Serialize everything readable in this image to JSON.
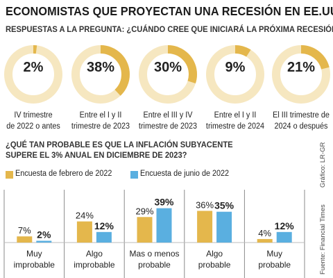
{
  "title": "ECONOMISTAS QUE PROYECTAN UNA RECESIÓN EN EE.UU.",
  "subtitle": "RESPUESTAS A LA PREGUNTA: ¿CUÁNDO CREE QUE INICIARÁ LA PRÓXIMA RECESIÓN?",
  "question2_line1": "¿QUÉ TAN PROBABLE ES QUE LA INFLACIÓN SUBYACENTE",
  "question2_line2": "SUPERE EL 3% ANUAL EN DICIEMBRE DE 2023?",
  "credit_grafico": "Gráfico: LR-GR",
  "credit_fuente": "Fuente: Financial Times",
  "colors": {
    "gold": "#e4b74c",
    "light_gold": "#f6e7c0",
    "blue": "#5aafe0",
    "grid": "#8a8a8a"
  },
  "chart_data": [
    {
      "type": "pie",
      "style": "donut",
      "title": "RESPUESTAS A LA PREGUNTA: ¿CUÁNDO CREE QUE INICIARÁ LA PRÓXIMA RECESIÓN?",
      "slices": [
        {
          "label_line1": "IV trimestre",
          "label_line2": "de 2022 o antes",
          "value": 2,
          "display": "2%"
        },
        {
          "label_line1": "Entre el I y II",
          "label_line2": "trimestre de 2023",
          "value": 38,
          "display": "38%"
        },
        {
          "label_line1": "Entre el III y IV",
          "label_line2": "trimestre de 2023",
          "value": 30,
          "display": "30%"
        },
        {
          "label_line1": "Entre el I y II",
          "label_line2": "trimestre de 2024",
          "value": 9,
          "display": "9%"
        },
        {
          "label_line1": "El III trimestre de",
          "label_line2": "2024 o después",
          "value": 21,
          "display": "21%"
        }
      ]
    },
    {
      "type": "bar",
      "title": "¿QUÉ TAN PROBABLE ES QUE LA INFLACIÓN SUBYACENTE SUPERE EL 3% ANUAL EN DICIEMBRE DE 2023?",
      "categories": [
        {
          "line1": "Muy",
          "line2": "improbable"
        },
        {
          "line1": "Algo",
          "line2": "improbable"
        },
        {
          "line1": "Mas o menos",
          "line2": "probable"
        },
        {
          "line1": "Algo",
          "line2": "probable"
        },
        {
          "line1": "Muy",
          "line2": "probable"
        }
      ],
      "series": [
        {
          "name": "Encuesta de febrero de 2022",
          "values": [
            7,
            24,
            29,
            36,
            4
          ],
          "labels": [
            "7%",
            "24%",
            "29%",
            "36%",
            "4%"
          ]
        },
        {
          "name": "Encuesta de junio de 2022",
          "values": [
            2,
            12,
            39,
            35,
            12
          ],
          "labels": [
            "2%",
            "12%",
            "39%",
            "35%",
            "12%"
          ]
        }
      ],
      "ylim": [
        0,
        60
      ],
      "legend": "top-left"
    }
  ]
}
